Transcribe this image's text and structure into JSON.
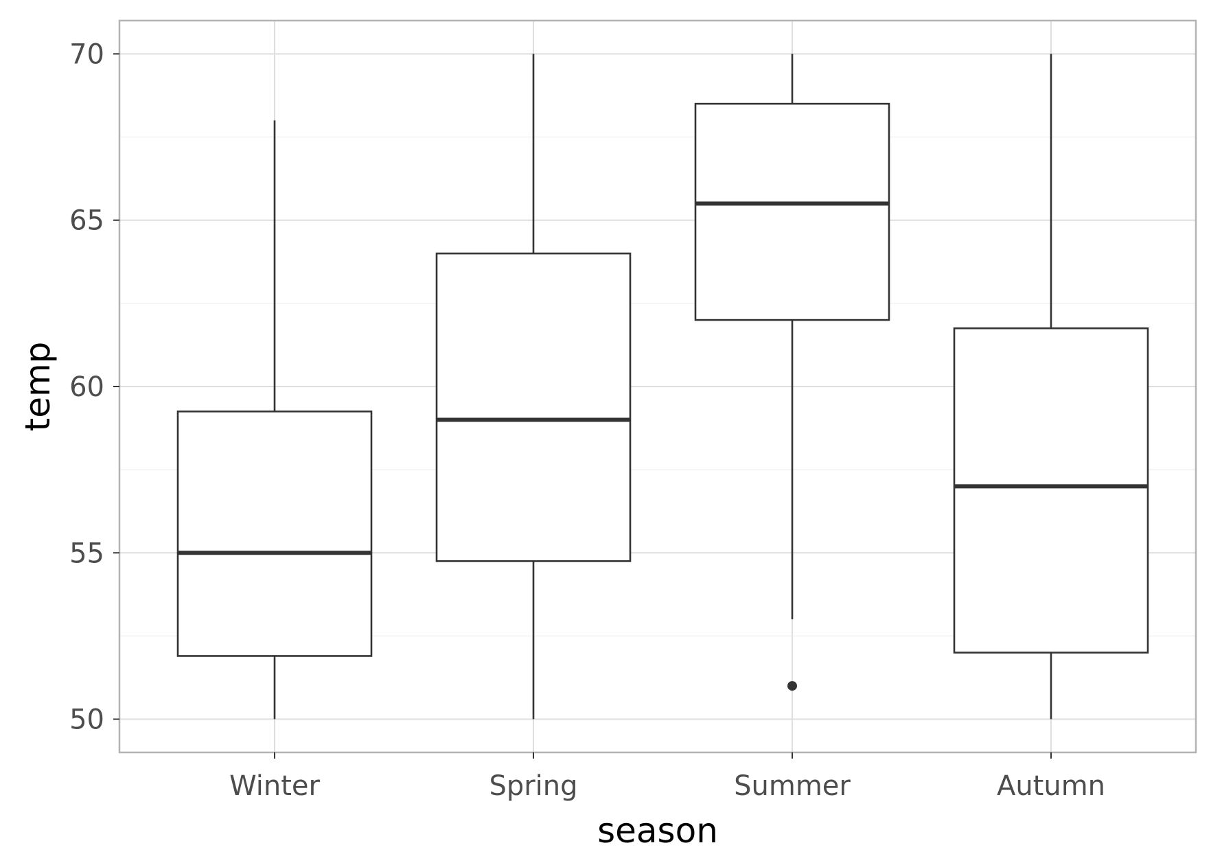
{
  "chart_data": {
    "type": "boxplot",
    "xlabel": "season",
    "ylabel": "temp",
    "categories": [
      "Winter",
      "Spring",
      "Summer",
      "Autumn"
    ],
    "boxes": [
      {
        "category": "Winter",
        "whisker_low": 50,
        "q1": 51.9,
        "median": 55,
        "q3": 59.25,
        "whisker_high": 68,
        "outliers": []
      },
      {
        "category": "Spring",
        "whisker_low": 50,
        "q1": 54.75,
        "median": 59,
        "q3": 64,
        "whisker_high": 70,
        "outliers": []
      },
      {
        "category": "Summer",
        "whisker_low": 53,
        "q1": 62,
        "median": 65.5,
        "q3": 68.5,
        "whisker_high": 70,
        "outliers": [
          51
        ]
      },
      {
        "category": "Autumn",
        "whisker_low": 50,
        "q1": 52,
        "median": 57,
        "q3": 61.75,
        "whisker_high": 70,
        "outliers": []
      }
    ],
    "ylim": [
      49,
      71
    ],
    "yticks": [
      50,
      55,
      60,
      65,
      70
    ],
    "ytick_labels": [
      "50",
      "55",
      "60",
      "65",
      "70"
    ],
    "grid": true,
    "colors": {
      "panel_border": "#b3b3b3",
      "grid_major": "#dedede",
      "grid_minor": "#efefef",
      "box_line": "#333333",
      "box_fill": "#ffffff",
      "tick_label": "#4d4d4d",
      "axis_title": "#000000"
    }
  }
}
